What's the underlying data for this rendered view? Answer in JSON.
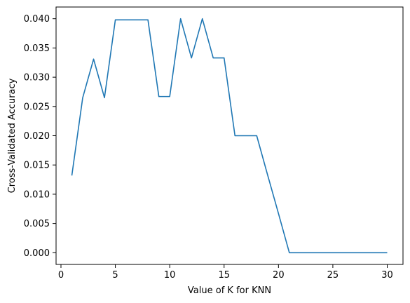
{
  "chart_data": {
    "type": "line",
    "title": "",
    "xlabel": "Value of K for KNN",
    "ylabel": "Cross-Validated Accuracy",
    "xlim": [
      -0.45,
      31.45
    ],
    "ylim": [
      -0.002,
      0.042
    ],
    "x_ticks": [
      0,
      5,
      10,
      15,
      20,
      25,
      30
    ],
    "x_tick_labels": [
      "0",
      "5",
      "10",
      "15",
      "20",
      "25",
      "30"
    ],
    "y_ticks": [
      0.0,
      0.005,
      0.01,
      0.015,
      0.02,
      0.025,
      0.03,
      0.035,
      0.04
    ],
    "y_tick_labels": [
      "0.000",
      "0.005",
      "0.010",
      "0.015",
      "0.020",
      "0.025",
      "0.030",
      "0.035",
      "0.040"
    ],
    "grid": false,
    "legend": "none",
    "series": [
      {
        "color": "#1f77b4",
        "x": [
          1,
          2,
          3,
          4,
          5,
          6,
          7,
          8,
          9,
          10,
          11,
          12,
          13,
          14,
          15,
          16,
          17,
          18,
          19,
          20,
          21,
          22,
          23,
          24,
          25,
          26,
          27,
          28,
          29,
          30
        ],
        "values": [
          0.0132,
          0.0265,
          0.0331,
          0.0265,
          0.0398,
          0.0398,
          0.0398,
          0.0398,
          0.0267,
          0.0267,
          0.04,
          0.0333,
          0.04,
          0.0333,
          0.0333,
          0.02,
          0.02,
          0.02,
          0.0133,
          0.0067,
          0.0,
          0.0,
          0.0,
          0.0,
          0.0,
          0.0,
          0.0,
          0.0,
          0.0,
          0.0
        ]
      }
    ]
  }
}
